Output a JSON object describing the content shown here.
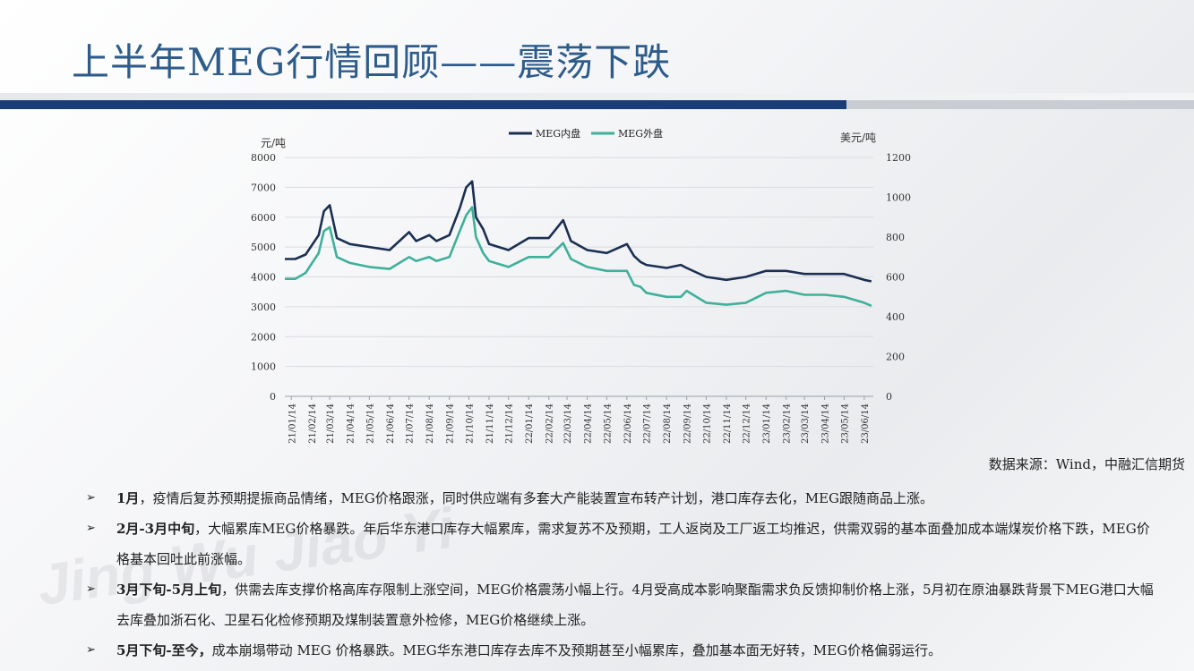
{
  "slide": {
    "title": "上半年MEG行情回顾——震荡下跌",
    "source": "数据来源：Wind，中融汇信期货",
    "watermark": "Jing Wu Jiao Yi"
  },
  "bullets": [
    {
      "bold": "1月",
      "text": "，疫情后复苏预期提振商品情绪，MEG价格跟涨，同时供应端有多套大产能装置宣布转产计划，港口库存去化，MEG跟随商品上涨。"
    },
    {
      "bold": "2月-3月中旬",
      "text": "，大幅累库MEG价格暴跌。年后华东港口库存大幅累库，需求复苏不及预期，工人返岗及工厂返工均推迟，供需双弱的基本面叠加成本端煤炭价格下跌，MEG价格基本回吐此前涨幅。"
    },
    {
      "bold": "3月下旬-5月上旬",
      "text": "，供需去库支撑价格高库存限制上涨空间，MEG价格震荡小幅上行。4月受高成本影响聚酯需求负反馈抑制价格上涨，5月初在原油暴跌背景下MEG港口大幅去库叠加浙石化、卫星石化检修预期及煤制装置意外检修，MEG价格继续上涨。"
    },
    {
      "bold": "5月下旬-至今，",
      "text": "成本崩塌带动 MEG 价格暴跌。MEG华东港口库存去库不及预期甚至小幅累库，叠加基本面无好转，MEG价格偏弱运行。"
    }
  ],
  "chart_data": {
    "type": "line",
    "left_axis_label": "元/吨",
    "right_axis_label": "美元/吨",
    "left_ylim": [
      0,
      8000
    ],
    "right_ylim": [
      0,
      1200
    ],
    "left_ticks": [
      "0",
      "1000",
      "2000",
      "3000",
      "4000",
      "5000",
      "6000",
      "7000",
      "8000"
    ],
    "right_ticks": [
      "0",
      "200",
      "400",
      "600",
      "800",
      "1000",
      "1200"
    ],
    "x_ticks": [
      "21/01/14",
      "21/02/14",
      "21/03/14",
      "21/04/14",
      "21/05/14",
      "21/06/14",
      "21/07/14",
      "21/08/14",
      "21/09/14",
      "21/10/14",
      "21/11/14",
      "21/12/14",
      "22/01/14",
      "22/02/14",
      "22/03/14",
      "22/04/14",
      "22/05/14",
      "22/06/14",
      "22/07/14",
      "22/08/14",
      "22/09/14",
      "22/10/14",
      "22/11/14",
      "22/12/14",
      "23/01/14",
      "23/02/14",
      "23/03/14",
      "23/04/14",
      "23/05/14",
      "23/06/14"
    ],
    "grid": true,
    "legend_position": "top",
    "series": [
      {
        "name": "MEG内盘",
        "axis": "left",
        "color": "#1b2f52",
        "x": [
          "21/01/04",
          "21/01/20",
          "21/02/05",
          "21/02/25",
          "21/03/05",
          "21/03/14",
          "21/03/25",
          "21/04/14",
          "21/05/14",
          "21/06/14",
          "21/07/14",
          "21/07/25",
          "21/08/14",
          "21/08/25",
          "21/09/14",
          "21/09/30",
          "21/10/10",
          "21/10/19",
          "21/10/25",
          "21/11/05",
          "21/11/14",
          "21/12/14",
          "22/01/14",
          "22/02/14",
          "22/03/08",
          "22/03/20",
          "22/04/14",
          "22/05/14",
          "22/06/14",
          "22/06/25",
          "22/07/05",
          "22/07/14",
          "22/08/14",
          "22/09/05",
          "22/09/14",
          "22/10/14",
          "22/11/14",
          "22/12/14",
          "23/01/14",
          "23/02/14",
          "23/03/14",
          "23/04/14",
          "23/05/14",
          "23/06/14",
          "23/06/25"
        ],
        "values": [
          4600,
          4600,
          4750,
          5400,
          6200,
          6400,
          5300,
          5100,
          5000,
          4900,
          5500,
          5200,
          5400,
          5200,
          5400,
          6300,
          7000,
          7200,
          6000,
          5600,
          5100,
          4900,
          5300,
          5300,
          5900,
          5200,
          4900,
          4800,
          5100,
          4700,
          4500,
          4400,
          4300,
          4400,
          4300,
          4000,
          3900,
          4000,
          4200,
          4200,
          4100,
          4100,
          4100,
          3900,
          3850
        ]
      },
      {
        "name": "MEG外盘",
        "axis": "right",
        "color": "#3fb09a",
        "x": [
          "21/01/04",
          "21/01/20",
          "21/02/05",
          "21/02/25",
          "21/03/05",
          "21/03/14",
          "21/03/25",
          "21/04/14",
          "21/05/14",
          "21/06/14",
          "21/07/14",
          "21/07/25",
          "21/08/14",
          "21/08/25",
          "21/09/14",
          "21/09/30",
          "21/10/10",
          "21/10/19",
          "21/10/25",
          "21/11/05",
          "21/11/14",
          "21/12/14",
          "22/01/14",
          "22/02/14",
          "22/03/08",
          "22/03/20",
          "22/04/14",
          "22/05/14",
          "22/06/14",
          "22/06/25",
          "22/07/05",
          "22/07/14",
          "22/08/14",
          "22/09/05",
          "22/09/14",
          "22/10/14",
          "22/11/14",
          "22/12/14",
          "23/01/14",
          "23/02/14",
          "23/03/14",
          "23/04/14",
          "23/05/14",
          "23/06/14",
          "23/06/25"
        ],
        "values": [
          590,
          590,
          620,
          720,
          830,
          850,
          700,
          670,
          650,
          640,
          700,
          680,
          700,
          680,
          700,
          830,
          910,
          950,
          800,
          720,
          680,
          650,
          700,
          700,
          770,
          690,
          650,
          630,
          630,
          560,
          550,
          520,
          500,
          500,
          530,
          470,
          460,
          470,
          520,
          530,
          510,
          510,
          500,
          470,
          455
        ]
      }
    ]
  }
}
